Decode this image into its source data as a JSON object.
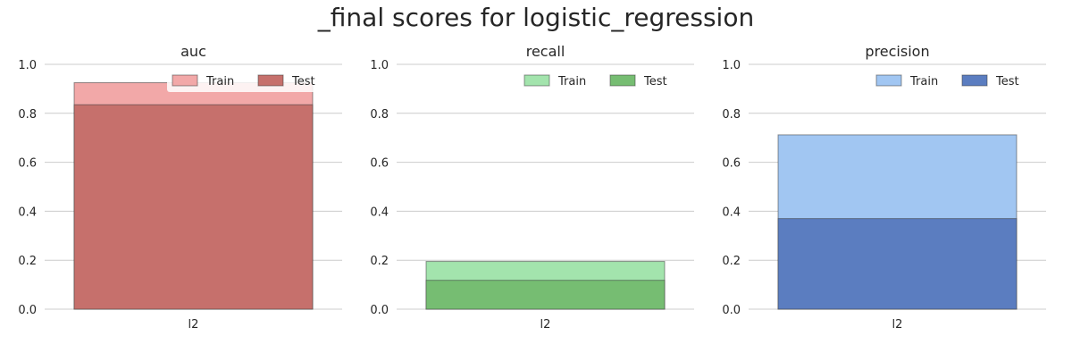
{
  "figure": {
    "title": "_final scores for logistic_regression"
  },
  "chart_data": [
    {
      "type": "bar",
      "title": "auc",
      "categories": [
        "l2"
      ],
      "ylim": [
        0,
        1.0
      ],
      "yticks": [
        "0.0",
        "0.2",
        "0.4",
        "0.6",
        "0.8",
        "1.0"
      ],
      "grid": true,
      "legend_position": "top-right",
      "series": [
        {
          "name": "Train",
          "values": [
            0.925
          ],
          "color": "#f2a8a8"
        },
        {
          "name": "Test",
          "values": [
            0.835
          ],
          "color": "#c6706c"
        }
      ]
    },
    {
      "type": "bar",
      "title": "recall",
      "categories": [
        "l2"
      ],
      "ylim": [
        0,
        1.0
      ],
      "yticks": [
        "0.0",
        "0.2",
        "0.4",
        "0.6",
        "0.8",
        "1.0"
      ],
      "grid": true,
      "legend_position": "top-right",
      "series": [
        {
          "name": "Train",
          "values": [
            0.195
          ],
          "color": "#a3e4ad"
        },
        {
          "name": "Test",
          "values": [
            0.118
          ],
          "color": "#76bd72"
        }
      ]
    },
    {
      "type": "bar",
      "title": "precision",
      "categories": [
        "l2"
      ],
      "ylim": [
        0,
        1.0
      ],
      "yticks": [
        "0.0",
        "0.2",
        "0.4",
        "0.6",
        "0.8",
        "1.0"
      ],
      "grid": true,
      "legend_position": "top-right",
      "series": [
        {
          "name": "Train",
          "values": [
            0.712
          ],
          "color": "#a1c6f2"
        },
        {
          "name": "Test",
          "values": [
            0.37
          ],
          "color": "#5b7dc0"
        }
      ]
    }
  ]
}
